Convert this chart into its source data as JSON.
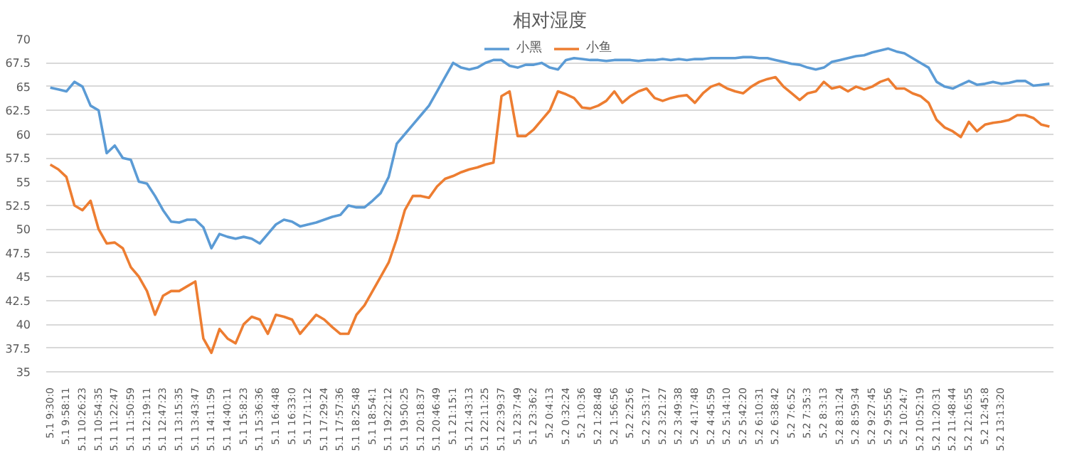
{
  "chart_data": {
    "type": "line",
    "title": "相对湿度",
    "categories": [
      "5.1 9:30:0",
      null,
      "5.1 9:58:11",
      null,
      "5.1 10:26:23",
      null,
      "5.1 10:54:35",
      null,
      "5.1 11:22:47",
      null,
      "5.1 11:50:59",
      null,
      "5.1 12:19:11",
      null,
      "5.1 12:47:23",
      null,
      "5.1 13:15:35",
      null,
      "5.1 13:43:47",
      null,
      "5.1 14:11:59",
      null,
      "5.1 14:40:11",
      null,
      "5.1 15:8:23",
      null,
      "5.1 15:36:36",
      null,
      "5.1 16:4:48",
      null,
      "5.1 16:33:0",
      null,
      "5.1 17:1:12",
      null,
      "5.1 17:29:24",
      null,
      "5.1 17:57:36",
      null,
      "5.1 18:25:48",
      null,
      "5.1 18:54:1",
      null,
      "5.1 19:22:12",
      null,
      "5.1 19:50:25",
      null,
      "5.1 20:18:37",
      null,
      "5.1 20:46:49",
      null,
      "5.1 21:15:1",
      null,
      "5.1 21:43:13",
      null,
      "5.1 22:11:25",
      null,
      "5.1 22:39:37",
      null,
      "5.1 23:7:49",
      null,
      "5.1 23:36:2",
      null,
      "5.2 0:4:13",
      null,
      "5.2 0:32:24",
      null,
      "5.2 1:0:36",
      null,
      "5.2 1:28:48",
      null,
      "5.2 1:56:56",
      null,
      "5.2 2:25:6",
      null,
      "5.2 2:53:17",
      null,
      "5.2 3:21:27",
      null,
      "5.2 3:49:38",
      null,
      "5.2 4:17:48",
      null,
      "5.2 4:45:59",
      null,
      "5.2 5:14:10",
      null,
      "5.2 5:42:20",
      null,
      "5.2 6:10:31",
      null,
      "5.2 6:38:42",
      null,
      "5.2 7:6:52",
      null,
      "5.2 7:35:3",
      null,
      "5.2 8:3:13",
      null,
      "5.2 8:31:24",
      null,
      "5.2 8:59:34",
      null,
      "5.2 9:27:45",
      null,
      "5.2 9:55:56",
      null,
      "5.2 10:24:7",
      null,
      "5.2 10:52:19",
      null,
      "5.2 11:20:31",
      null,
      "5.2 11:48:44",
      null,
      "5.2 12:16:55",
      null,
      "5.2 12:45:8",
      null,
      "5.2 13:13:20",
      null,
      null,
      null,
      null,
      null,
      null
    ],
    "series": [
      {
        "name": "小黑",
        "color": "#5b9bd5",
        "values": [
          64.9,
          64.7,
          64.5,
          65.5,
          65,
          63,
          62.5,
          58,
          58.8,
          57.5,
          57.3,
          55,
          54.8,
          53.5,
          52,
          50.8,
          50.7,
          51,
          51,
          50.2,
          48,
          49.5,
          49.2,
          49,
          49.2,
          49,
          48.5,
          49.5,
          50.5,
          51,
          50.8,
          50.3,
          50.5,
          50.7,
          51,
          51.3,
          51.5,
          52.5,
          52.3,
          52.3,
          53,
          53.8,
          55.5,
          59,
          60,
          61,
          62,
          63,
          64.5,
          66,
          67.5,
          67,
          66.8,
          67,
          67.5,
          67.8,
          67.8,
          67.2,
          67,
          67.3,
          67.3,
          67.5,
          67,
          66.8,
          67.8,
          68,
          67.9,
          67.8,
          67.8,
          67.7,
          67.8,
          67.8,
          67.8,
          67.7,
          67.8,
          67.8,
          67.9,
          67.8,
          67.9,
          67.8,
          67.9,
          67.9,
          68,
          68,
          68,
          68,
          68.1,
          68.1,
          68,
          68,
          67.8,
          67.6,
          67.4,
          67.3,
          67,
          66.8,
          67,
          67.6,
          67.8,
          68,
          68.2,
          68.3,
          68.6,
          68.8,
          69,
          68.7,
          68.5,
          68,
          67.5,
          67,
          65.5,
          65,
          64.8,
          65.2,
          65.6,
          65.2,
          65.3,
          65.5,
          65.3,
          65.4,
          65.6,
          65.6,
          65.1,
          65.2,
          65.3
        ]
      },
      {
        "name": "小鱼",
        "color": "#ed7d31",
        "values": [
          56.8,
          56.3,
          55.5,
          52.5,
          52,
          53,
          50,
          48.5,
          48.6,
          48,
          46,
          45,
          43.5,
          41,
          43,
          43.5,
          43.5,
          44,
          44.5,
          38.5,
          37,
          39.5,
          38.5,
          38,
          40,
          40.8,
          40.5,
          39,
          41,
          40.8,
          40.5,
          39,
          40,
          41,
          40.5,
          39.7,
          39,
          39,
          41,
          42,
          43.5,
          45,
          46.5,
          49,
          52,
          53.5,
          53.5,
          53.3,
          54.5,
          55.3,
          55.6,
          56,
          56.3,
          56.5,
          56.8,
          57,
          64,
          64.5,
          59.8,
          59.8,
          60.5,
          61.5,
          62.5,
          64.5,
          64.2,
          63.8,
          62.8,
          62.7,
          63,
          63.5,
          64.5,
          63.3,
          64,
          64.5,
          64.8,
          63.8,
          63.5,
          63.8,
          64,
          64.1,
          63.3,
          64.3,
          65,
          65.3,
          64.8,
          64.5,
          64.3,
          65,
          65.5,
          65.8,
          66,
          65,
          64.3,
          63.6,
          64.3,
          64.5,
          65.5,
          64.8,
          65,
          64.5,
          65,
          64.7,
          65,
          65.5,
          65.8,
          64.8,
          64.8,
          64.3,
          64,
          63.3,
          61.5,
          60.7,
          60.3,
          59.7,
          61.3,
          60.3,
          61,
          61.2,
          61.3,
          61.5,
          62,
          62,
          61.7,
          61,
          60.8
        ]
      }
    ],
    "ylim": [
      35,
      70
    ],
    "yticks": [
      35,
      37.5,
      40,
      42.5,
      45,
      47.5,
      50,
      52.5,
      55,
      57.5,
      60,
      62.5,
      65,
      67.5,
      70
    ],
    "grid": "y",
    "legend": "top"
  }
}
